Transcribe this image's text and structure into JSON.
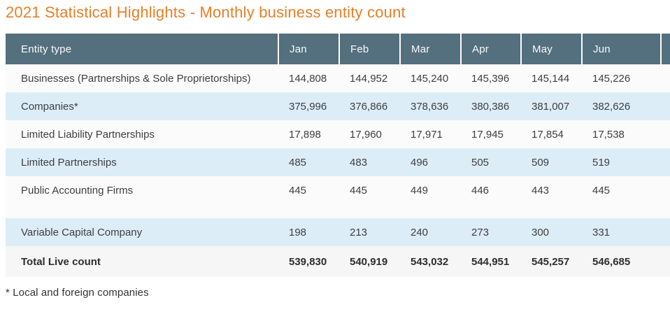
{
  "title": "2021 Statistical Highlights - Monthly business entity count",
  "footnote": "* Local and foreign companies",
  "colors": {
    "title_orange": "#e87e26",
    "header_background": "#546f7d",
    "header_text": "#fafbfc",
    "row_blue": "#dcedf8",
    "row_light": "#fbfbfb",
    "total_row_background": "#f6f6f6",
    "body_text": "#3e3e3e"
  },
  "table": {
    "columns": [
      "Entity type",
      "Jan",
      "Feb",
      "Mar",
      "Apr",
      "May",
      "Jun"
    ],
    "rows": [
      {
        "label": "Businesses (Partnerships & Sole Proprietorships)",
        "values": [
          "144,808",
          "144,952",
          "145,240",
          "145,396",
          "145,144",
          "145,226"
        ]
      },
      {
        "label": "Companies*",
        "values": [
          "375,996",
          "376,866",
          "378,636",
          "380,386",
          "381,007",
          "382,626"
        ]
      },
      {
        "label": "Limited Liability Partnerships",
        "values": [
          "17,898",
          "17,960",
          "17,971",
          "17,945",
          "17,854",
          "17,538"
        ]
      },
      {
        "label": "Limited Partnerships",
        "values": [
          "485",
          "483",
          "496",
          "505",
          "509",
          "519"
        ]
      },
      {
        "label": "Public Accounting Firms",
        "values": [
          "445",
          "445",
          "449",
          "446",
          "443",
          "445"
        ]
      },
      {
        "label": "Variable Capital Company",
        "values": [
          "198",
          "213",
          "240",
          "273",
          "300",
          "331"
        ]
      }
    ],
    "total_row": {
      "label": "Total Live count",
      "values": [
        "539,830",
        "540,919",
        "543,032",
        "544,951",
        "545,257",
        "546,685"
      ]
    }
  }
}
